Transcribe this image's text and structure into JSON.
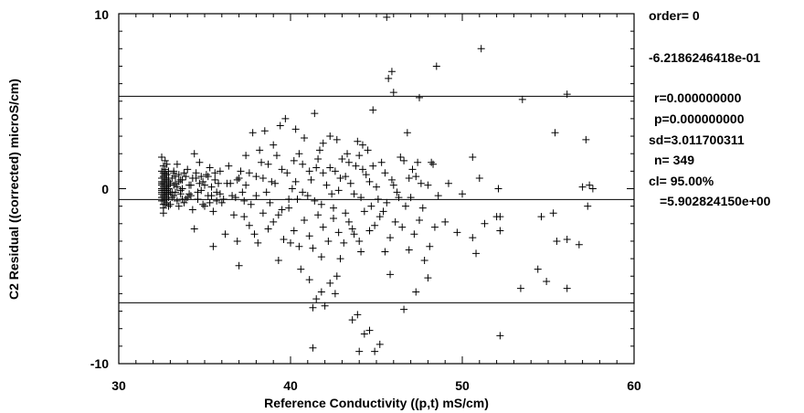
{
  "chart_data": {
    "type": "scatter",
    "title": "",
    "xlabel": "Reference Conductivity ((p,t) mS/cm)",
    "ylabel": "C2 Residual ((corrected) microS/cm)",
    "xlim": [
      30,
      60
    ],
    "ylim": [
      -10,
      10
    ],
    "x_ticks": [
      "30",
      "40",
      "50",
      "60"
    ],
    "y_ticks": [
      "-10",
      "0",
      "10"
    ],
    "marker": "plus",
    "grid": false,
    "legend": "none",
    "hlines": [
      5.28,
      -0.62,
      -6.52
    ],
    "stats": {
      "order": "order= 0",
      "intercept": "-6.2186246418e-01",
      "r": "r=0.000000000",
      "p": "p=0.000000000",
      "sd": "sd=3.011700311",
      "n": "n=  349",
      "cl": "cl=  95.00%",
      "cl_value": "=5.902824150e+00"
    },
    "points": [
      [
        32.5,
        0.3
      ],
      [
        32.6,
        -0.1
      ],
      [
        32.7,
        0.5
      ],
      [
        32.8,
        0.0
      ],
      [
        32.5,
        -0.5
      ],
      [
        32.6,
        0.9
      ],
      [
        32.9,
        -0.3
      ],
      [
        32.7,
        1.1
      ],
      [
        32.5,
        0.2
      ],
      [
        32.8,
        -0.8
      ],
      [
        32.6,
        0.4
      ],
      [
        32.7,
        -0.2
      ],
      [
        32.9,
        0.6
      ],
      [
        32.5,
        1.8
      ],
      [
        32.6,
        -1.1
      ],
      [
        32.8,
        0.1
      ],
      [
        32.7,
        -0.6
      ],
      [
        32.6,
        1.3
      ],
      [
        32.9,
        0.2
      ],
      [
        32.5,
        -0.3
      ],
      [
        32.7,
        0.8
      ],
      [
        32.6,
        -0.9
      ],
      [
        32.8,
        0.5
      ],
      [
        32.5,
        0.0
      ],
      [
        32.7,
        -0.4
      ],
      [
        32.9,
        1.0
      ],
      [
        32.6,
        0.7
      ],
      [
        32.8,
        -0.1
      ],
      [
        32.7,
        1.6
      ],
      [
        32.5,
        -0.7
      ],
      [
        33.0,
        0.3
      ],
      [
        33.1,
        -0.5
      ],
      [
        33.2,
        0.9
      ],
      [
        33.3,
        -0.2
      ],
      [
        33.4,
        1.4
      ],
      [
        33.5,
        -1.0
      ],
      [
        33.6,
        0.5
      ],
      [
        33.7,
        0.0
      ],
      [
        33.8,
        -0.8
      ],
      [
        33.9,
        0.7
      ],
      [
        34.0,
        1.1
      ],
      [
        34.1,
        -0.3
      ],
      [
        34.2,
        0.2
      ],
      [
        34.3,
        -1.2
      ],
      [
        34.4,
        2.0
      ],
      [
        34.5,
        0.6
      ],
      [
        34.6,
        -0.6
      ],
      [
        34.7,
        1.5
      ],
      [
        34.8,
        -0.1
      ],
      [
        34.9,
        0.4
      ],
      [
        35.0,
        -1.0
      ],
      [
        35.1,
        0.8
      ],
      [
        35.2,
        -0.4
      ],
      [
        35.3,
        1.2
      ],
      [
        35.4,
        0.1
      ],
      [
        35.5,
        -1.3
      ],
      [
        35.6,
        0.9
      ],
      [
        35.7,
        -0.7
      ],
      [
        35.8,
        0.3
      ],
      [
        35.9,
        1.0
      ],
      [
        34.4,
        -2.3
      ],
      [
        35.5,
        -3.3
      ],
      [
        36.2,
        -2.6
      ],
      [
        36.9,
        -3.0
      ],
      [
        37.0,
        -4.4
      ],
      [
        37.3,
        -1.6
      ],
      [
        37.6,
        -2.1
      ],
      [
        37.9,
        -2.6
      ],
      [
        38.1,
        -3.1
      ],
      [
        38.4,
        -1.4
      ],
      [
        38.7,
        -2.3
      ],
      [
        39.0,
        -1.9
      ],
      [
        39.3,
        -4.1
      ],
      [
        39.6,
        -2.9
      ],
      [
        39.9,
        -1.1
      ],
      [
        40.2,
        -2.4
      ],
      [
        40.5,
        -3.3
      ],
      [
        40.8,
        -1.8
      ],
      [
        41.1,
        -2.7
      ],
      [
        41.3,
        -3.4
      ],
      [
        41.6,
        -1.5
      ],
      [
        41.9,
        -2.2
      ],
      [
        42.2,
        -3.0
      ],
      [
        42.5,
        -1.7
      ],
      [
        42.8,
        -2.5
      ],
      [
        43.1,
        -3.1
      ],
      [
        43.4,
        -1.9
      ],
      [
        43.7,
        -2.6
      ],
      [
        44.0,
        -3.0
      ],
      [
        44.3,
        -1.3
      ],
      [
        44.6,
        -2.4
      ],
      [
        44.9,
        -2.1
      ],
      [
        45.2,
        -1.6
      ],
      [
        45.5,
        -3.6
      ],
      [
        45.8,
        -2.8
      ],
      [
        46.1,
        -1.9
      ],
      [
        46.5,
        -2.2
      ],
      [
        46.9,
        -3.5
      ],
      [
        47.2,
        -2.6
      ],
      [
        47.5,
        -1.8
      ],
      [
        47.8,
        -4.1
      ],
      [
        48.1,
        -3.3
      ],
      [
        48.4,
        -2.2
      ],
      [
        49.0,
        -1.9
      ],
      [
        49.7,
        -2.5
      ],
      [
        50.6,
        -2.8
      ],
      [
        50.8,
        -3.7
      ],
      [
        51.3,
        -2.0
      ],
      [
        52.0,
        -1.6
      ],
      [
        52.2,
        -2.4
      ],
      [
        55.3,
        -1.4
      ],
      [
        55.5,
        -3.0
      ],
      [
        56.1,
        -2.9
      ],
      [
        56.8,
        -3.2
      ],
      [
        57.3,
        -1.0
      ],
      [
        54.6,
        -1.6
      ],
      [
        52.2,
        -1.6
      ],
      [
        36.5,
        0.3
      ],
      [
        36.8,
        -0.5
      ],
      [
        37.1,
        1.0
      ],
      [
        37.4,
        0.2
      ],
      [
        37.7,
        -0.9
      ],
      [
        38.0,
        0.7
      ],
      [
        38.3,
        1.5
      ],
      [
        38.6,
        -0.2
      ],
      [
        38.9,
        0.4
      ],
      [
        39.2,
        1.9
      ],
      [
        39.5,
        -1.2
      ],
      [
        39.8,
        0.9
      ],
      [
        40.1,
        0.0
      ],
      [
        40.4,
        -0.6
      ],
      [
        40.7,
        1.4
      ],
      [
        41.0,
        -0.4
      ],
      [
        41.2,
        0.5
      ],
      [
        41.5,
        1.2
      ],
      [
        41.8,
        -0.9
      ],
      [
        42.1,
        0.2
      ],
      [
        42.4,
        -0.3
      ],
      [
        42.6,
        1.0
      ],
      [
        42.9,
        0.6
      ],
      [
        43.2,
        -1.4
      ],
      [
        43.5,
        0.3
      ],
      [
        43.8,
        1.3
      ],
      [
        44.1,
        -0.5
      ],
      [
        44.4,
        0.8
      ],
      [
        44.7,
        -1.0
      ],
      [
        45.0,
        0.1
      ],
      [
        45.3,
        1.5
      ],
      [
        45.6,
        -0.8
      ],
      [
        45.9,
        0.5
      ],
      [
        46.2,
        -0.2
      ],
      [
        46.6,
        1.6
      ],
      [
        47.0,
        -0.5
      ],
      [
        47.3,
        0.7
      ],
      [
        47.7,
        -1.1
      ],
      [
        48.0,
        0.2
      ],
      [
        48.3,
        1.4
      ],
      [
        48.6,
        -0.4
      ],
      [
        49.2,
        0.3
      ],
      [
        50.0,
        -0.3
      ],
      [
        51.0,
        0.6
      ],
      [
        52.1,
        0.0
      ],
      [
        57.4,
        0.2
      ],
      [
        57.6,
        0.0
      ],
      [
        57.0,
        0.1
      ],
      [
        37.8,
        3.2
      ],
      [
        38.5,
        3.3
      ],
      [
        39.7,
        4.0
      ],
      [
        40.3,
        3.4
      ],
      [
        41.4,
        4.3
      ],
      [
        42.3,
        3.0
      ],
      [
        43.9,
        2.7
      ],
      [
        44.2,
        2.5
      ],
      [
        44.8,
        4.5
      ],
      [
        45.7,
        6.3
      ],
      [
        45.9,
        6.7
      ],
      [
        46.0,
        5.5
      ],
      [
        46.8,
        3.2
      ],
      [
        47.5,
        5.2
      ],
      [
        48.5,
        7.0
      ],
      [
        51.1,
        8.0
      ],
      [
        53.5,
        5.1
      ],
      [
        55.4,
        3.2
      ],
      [
        56.1,
        5.4
      ],
      [
        57.2,
        2.8
      ],
      [
        50.6,
        1.8
      ],
      [
        39.0,
        2.5
      ],
      [
        40.8,
        2.9
      ],
      [
        41.7,
        2.2
      ],
      [
        42.7,
        2.8
      ],
      [
        43.3,
        2.0
      ],
      [
        44.5,
        2.2
      ],
      [
        46.4,
        1.8
      ],
      [
        47.4,
        1.5
      ],
      [
        48.2,
        1.5
      ],
      [
        45.6,
        9.8
      ],
      [
        37.4,
        1.9
      ],
      [
        38.2,
        2.2
      ],
      [
        39.4,
        3.6
      ],
      [
        40.5,
        2.0
      ],
      [
        41.9,
        2.6
      ],
      [
        43.0,
        1.7
      ],
      [
        44.0,
        1.9
      ],
      [
        41.1,
        -5.2
      ],
      [
        41.5,
        -6.3
      ],
      [
        41.8,
        -5.9
      ],
      [
        42.3,
        -5.4
      ],
      [
        42.6,
        -6.0
      ],
      [
        42.7,
        -5.0
      ],
      [
        42.0,
        -6.7
      ],
      [
        41.3,
        -6.8
      ],
      [
        43.6,
        -7.5
      ],
      [
        43.9,
        -7.2
      ],
      [
        44.3,
        -8.3
      ],
      [
        44.6,
        -8.1
      ],
      [
        44.9,
        -9.3
      ],
      [
        45.2,
        -8.9
      ],
      [
        44.0,
        -9.3
      ],
      [
        41.3,
        -9.1
      ],
      [
        45.8,
        -4.9
      ],
      [
        46.6,
        -6.9
      ],
      [
        47.3,
        -5.9
      ],
      [
        48.0,
        -5.1
      ],
      [
        52.2,
        -8.4
      ],
      [
        53.4,
        -5.7
      ],
      [
        54.4,
        -4.6
      ],
      [
        54.9,
        -5.3
      ],
      [
        56.1,
        -5.7
      ],
      [
        43.6,
        -2.3
      ],
      [
        44.1,
        -3.6
      ],
      [
        40.0,
        -3.1
      ],
      [
        40.6,
        -4.6
      ],
      [
        41.8,
        -3.9
      ],
      [
        42.9,
        -4.0
      ],
      [
        36.9,
        0.5
      ],
      [
        37.2,
        -0.2
      ],
      [
        37.6,
        0.9
      ],
      [
        38.0,
        -0.4
      ],
      [
        38.4,
        0.6
      ],
      [
        38.8,
        -0.8
      ],
      [
        39.1,
        0.3
      ],
      [
        39.5,
        1.1
      ],
      [
        39.9,
        -0.6
      ],
      [
        40.3,
        0.4
      ],
      [
        40.7,
        -0.2
      ],
      [
        41.1,
        1.0
      ],
      [
        41.4,
        -0.7
      ],
      [
        41.9,
        0.9
      ],
      [
        42.3,
        1.2
      ],
      [
        42.8,
        -0.1
      ],
      [
        43.2,
        0.7
      ],
      [
        43.7,
        -0.3
      ],
      [
        44.2,
        1.1
      ],
      [
        44.6,
        0.4
      ],
      [
        45.1,
        -0.6
      ],
      [
        45.5,
        0.9
      ],
      [
        46.0,
        0.2
      ],
      [
        46.3,
        -0.5
      ],
      [
        46.9,
        0.6
      ],
      [
        47.6,
        0.3
      ],
      [
        33.4,
        0.1
      ],
      [
        33.8,
        0.9
      ],
      [
        34.2,
        -0.4
      ],
      [
        34.7,
        0.3
      ],
      [
        35.2,
        0.7
      ],
      [
        35.7,
        -0.2
      ],
      [
        36.1,
        -0.6
      ],
      [
        36.4,
        1.3
      ],
      [
        36.7,
        -1.5
      ],
      [
        37.0,
        0.6
      ],
      [
        36.0,
        -0.8
      ],
      [
        35.4,
        -0.4
      ],
      [
        34.9,
        -0.9
      ],
      [
        34.5,
        0.9
      ],
      [
        33.9,
        -0.6
      ],
      [
        33.5,
        0.4
      ],
      [
        33.1,
        -0.2
      ],
      [
        33.3,
        0.7
      ],
      [
        33.6,
        -0.3
      ],
      [
        32.8,
        1.4
      ],
      [
        32.6,
        -1.4
      ],
      [
        32.7,
        0.2
      ],
      [
        32.9,
        -0.5
      ],
      [
        32.5,
        0.6
      ],
      [
        32.6,
        0.1
      ],
      [
        32.8,
        -0.3
      ],
      [
        32.7,
        0.9
      ],
      [
        32.5,
        -0.1
      ],
      [
        32.9,
        0.4
      ],
      [
        32.6,
        -0.7
      ],
      [
        32.8,
        0.2
      ],
      [
        32.7,
        -0.9
      ],
      [
        32.5,
        1.0
      ],
      [
        32.6,
        -0.4
      ],
      [
        32.7,
        0.6
      ],
      [
        32.9,
        -1.0
      ],
      [
        32.5,
        -0.2
      ],
      [
        32.8,
        0.8
      ],
      [
        32.6,
        0.3
      ],
      [
        32.7,
        -0.1
      ],
      [
        32.9,
        0.0
      ],
      [
        32.5,
        0.4
      ],
      [
        32.6,
        -0.5
      ],
      [
        32.8,
        -0.6
      ],
      [
        33.0,
        -0.2
      ],
      [
        33.2,
        0.2
      ],
      [
        33.1,
        0.6
      ],
      [
        33.0,
        -0.9
      ],
      [
        33.2,
        -0.4
      ],
      [
        33.3,
        0.3
      ],
      [
        33.4,
        -0.7
      ],
      [
        33.5,
        0.8
      ],
      [
        33.6,
        -0.1
      ],
      [
        33.7,
        0.5
      ],
      [
        34.0,
        -0.5
      ],
      [
        34.3,
        0.6
      ],
      [
        34.6,
        -0.2
      ],
      [
        35.0,
        0.2
      ],
      [
        35.3,
        -0.8
      ],
      [
        35.6,
        0.5
      ],
      [
        35.9,
        -0.3
      ],
      [
        36.3,
        0.3
      ],
      [
        36.6,
        -0.4
      ],
      [
        37.3,
        -0.7
      ],
      [
        38.7,
        1.4
      ],
      [
        39.3,
        -1.5
      ],
      [
        40.2,
        1.6
      ],
      [
        41.6,
        1.7
      ],
      [
        42.5,
        -1.1
      ],
      [
        43.4,
        1.5
      ],
      [
        44.8,
        1.3
      ],
      [
        45.4,
        -1.3
      ],
      [
        46.7,
        -1.0
      ],
      [
        47.1,
        1.1
      ],
      [
        33.2,
        1.0
      ],
      [
        33.7,
        -0.6
      ],
      [
        34.1,
        0.2
      ],
      [
        34.8,
        0.7
      ]
    ]
  }
}
